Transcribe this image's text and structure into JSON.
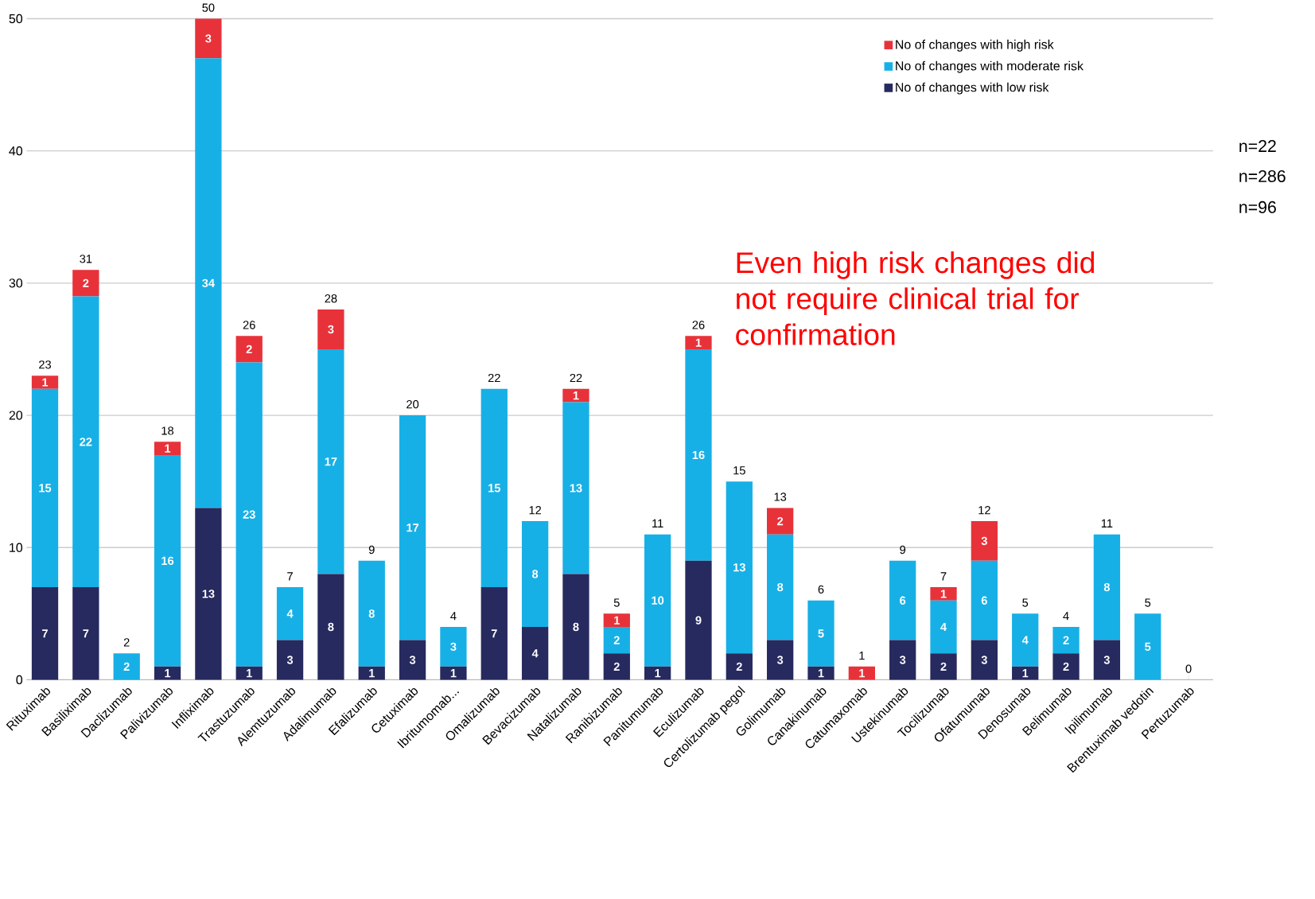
{
  "chart_data": {
    "type": "bar",
    "stacked": true,
    "categories": [
      "Rituximab",
      "Basiliximab",
      "Daclizumab",
      "Palivizumab",
      "Infliximab",
      "Trastuzumab",
      "Alemtuzumab",
      "Adalimumab",
      "Efalizumab",
      "Cetuximab",
      "Ibritumomab...",
      "Omalizumab",
      "Bevacizumab",
      "Natalizumab",
      "Ranibizumab",
      "Panitumumab",
      "Eculizumab",
      "Certolizumab pegol",
      "Golimumab",
      "Canakinumab",
      "Catumaxomab",
      "Ustekinumab",
      "Tocilizumab",
      "Ofatumumab",
      "Denosumab",
      "Belimumab",
      "Ipilimumab",
      "Brentuximab vedotin",
      "Pertuzumab"
    ],
    "series": [
      {
        "name": "No of changes with low risk",
        "color": "#272a5e",
        "values": [
          7,
          7,
          0,
          1,
          13,
          1,
          3,
          8,
          1,
          3,
          1,
          7,
          4,
          8,
          2,
          1,
          9,
          2,
          3,
          1,
          0,
          3,
          2,
          3,
          1,
          2,
          3,
          0,
          0
        ],
        "value_labels": [
          "7",
          "7",
          null,
          "1",
          "13",
          "1",
          "3",
          "8",
          "1",
          "3",
          "1",
          "7",
          "4",
          "8",
          "2",
          "1",
          "9",
          "2",
          "3",
          "1",
          null,
          "3",
          "2",
          "3",
          "1",
          "2",
          "3",
          null,
          null
        ]
      },
      {
        "name": "No of changes with moderate risk",
        "color": "#17b0e6",
        "values": [
          15,
          22,
          2,
          16,
          34,
          23,
          4,
          17,
          8,
          17,
          3,
          15,
          8,
          13,
          2,
          10,
          16,
          13,
          8,
          5,
          0,
          6,
          4,
          6,
          4,
          2,
          8,
          5,
          0
        ],
        "value_labels": [
          "15",
          "22",
          "2",
          "16",
          "34",
          "23",
          "4",
          "17",
          "8",
          "17",
          "3",
          "15",
          "8",
          "13",
          "2",
          "10",
          "16",
          "13",
          "8",
          "5",
          null,
          "6",
          "4",
          "6",
          "4",
          "2",
          "8",
          "5",
          null
        ]
      },
      {
        "name": "No of changes with high risk",
        "color": "#e8323a",
        "values": [
          1,
          2,
          0,
          1,
          3,
          2,
          0,
          3,
          0,
          0,
          0,
          0,
          0,
          1,
          1,
          0,
          1,
          0,
          2,
          0,
          1,
          0,
          1,
          3,
          0,
          0,
          0,
          0,
          0
        ],
        "value_labels": [
          "1",
          "2",
          null,
          "1",
          "3",
          "2",
          null,
          "3",
          null,
          null,
          null,
          null,
          null,
          "1",
          "1",
          null,
          "1",
          null,
          "2",
          null,
          "1",
          null,
          "1",
          "3",
          null,
          null,
          null,
          null,
          null
        ]
      }
    ],
    "totals": [
      "23",
      "31",
      "2",
      "18",
      "50",
      "26",
      "7",
      "28",
      "9",
      "20",
      "4",
      "22",
      "12",
      "22",
      "5",
      "11",
      "26",
      "15",
      "13",
      "6",
      "1",
      "9",
      "7",
      "12",
      "5",
      "4",
      "11",
      "5",
      "0"
    ],
    "ylim": [
      0,
      50
    ],
    "yticks": [
      0,
      10,
      20,
      30,
      40,
      50
    ],
    "grid": "y",
    "legend": "top right",
    "annotations": [
      "n=22",
      "n=286",
      "n=96",
      "Even high risk changes did not require clinical trial for confirmation"
    ]
  }
}
